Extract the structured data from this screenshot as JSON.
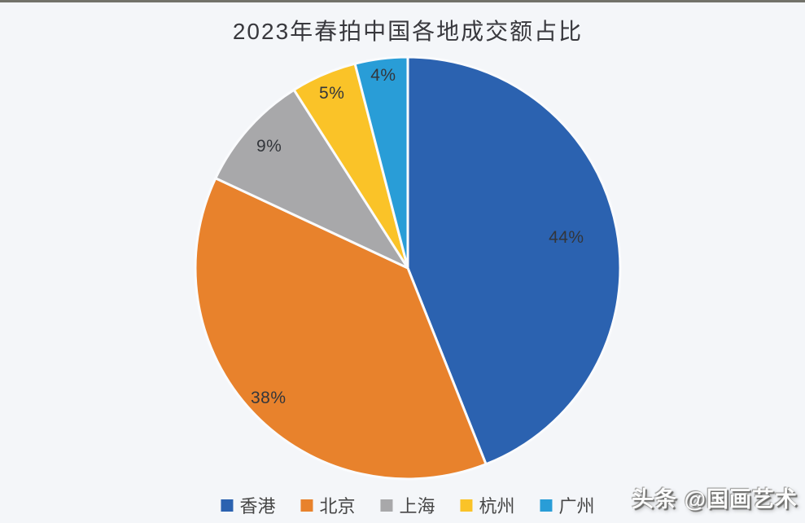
{
  "chart_data": {
    "type": "pie",
    "title": "2023年春拍中国各地成交额占比",
    "start_angle_deg": 0,
    "direction": "clockwise",
    "legend_position": "bottom",
    "labels_on_slices": true,
    "categories": [
      "香港",
      "北京",
      "上海",
      "杭州",
      "广州"
    ],
    "values": [
      44,
      38,
      9,
      5,
      4
    ],
    "slices": [
      {
        "key": "hong-kong",
        "label": "香港",
        "value": 44,
        "display": "44%",
        "color": "#2B62B0"
      },
      {
        "key": "beijing",
        "label": "北京",
        "value": 38,
        "display": "38%",
        "color": "#E8822C"
      },
      {
        "key": "shanghai",
        "label": "上海",
        "value": 9,
        "display": "9%",
        "color": "#A8A8AA"
      },
      {
        "key": "hangzhou",
        "label": "杭州",
        "value": 5,
        "display": "5%",
        "color": "#FAC328"
      },
      {
        "key": "guangzhou",
        "label": "广州",
        "value": 4,
        "display": "4%",
        "color": "#299DD7"
      }
    ]
  },
  "watermark": {
    "text": "头条 @国画艺术"
  },
  "style": {
    "background": "#F4F6F9",
    "top_strip": "#72726A",
    "slice_border": "#FAFBFD",
    "title_color": "#38383D",
    "label_color": "#33363B",
    "legend_text_color": "#464646"
  }
}
